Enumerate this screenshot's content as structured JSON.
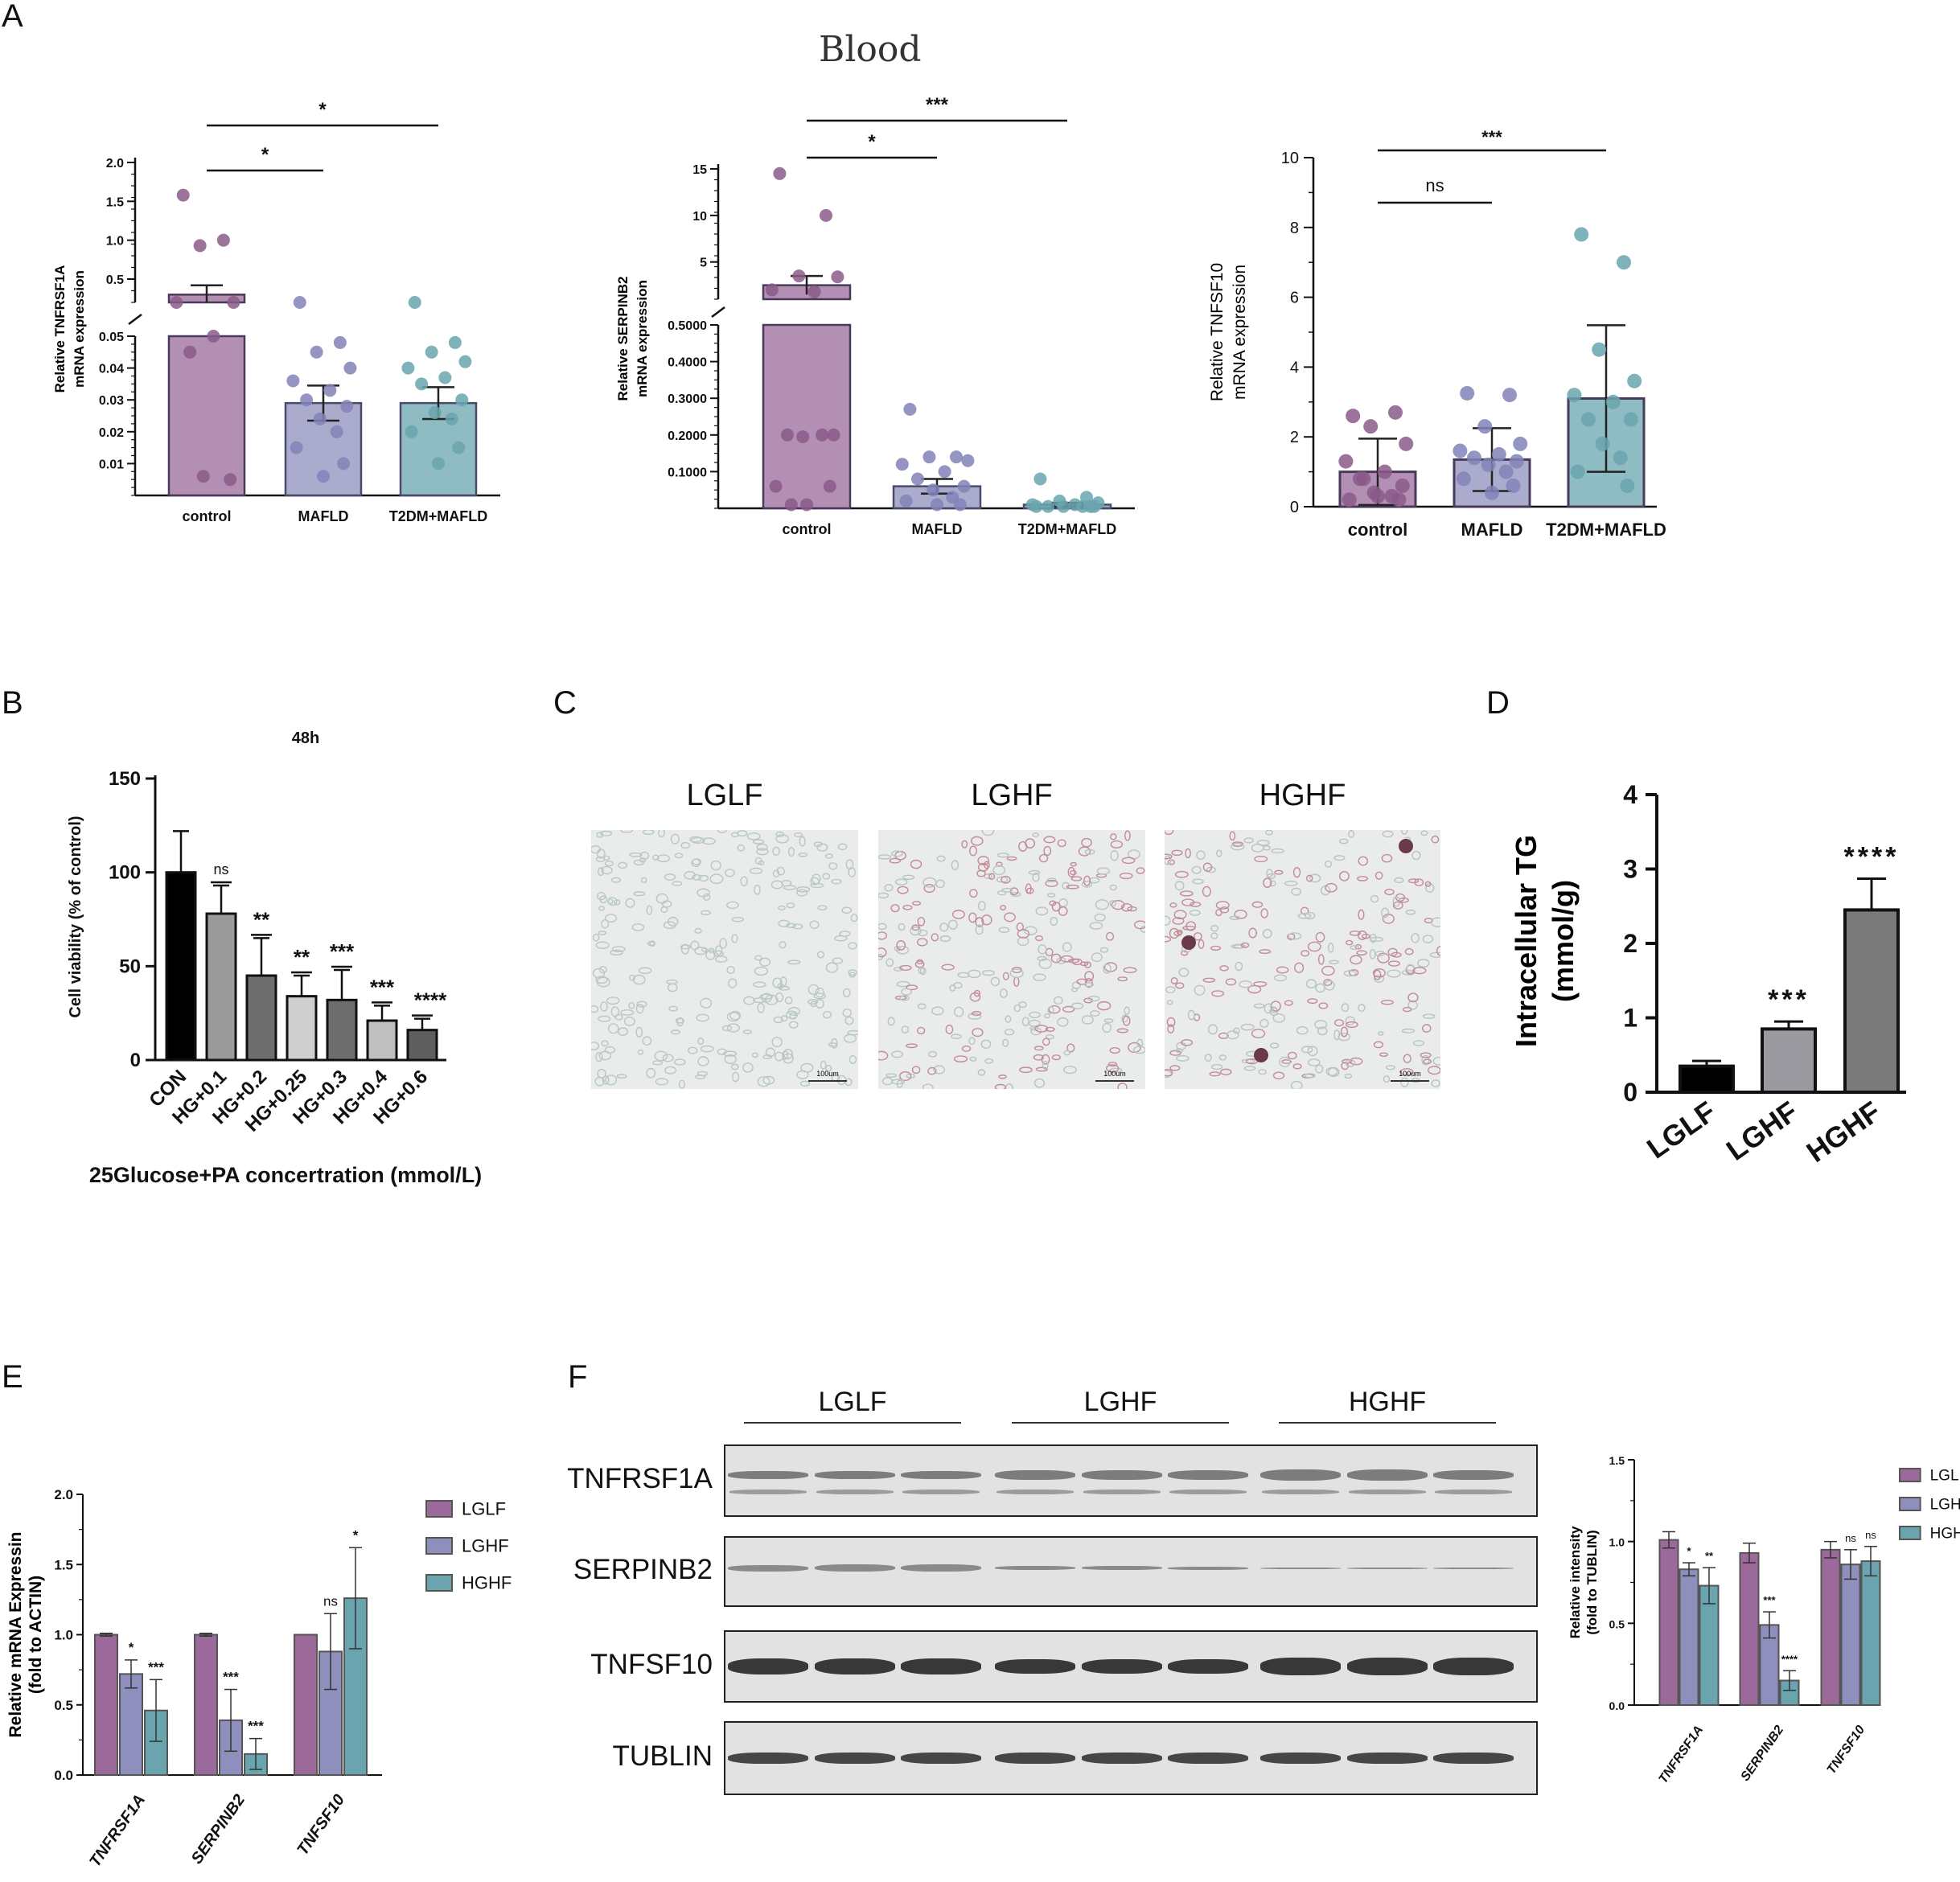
{
  "panels": {
    "A": "A",
    "B": "B",
    "C": "C",
    "D": "D",
    "E": "E",
    "F": "F"
  },
  "header_title": "Blood",
  "colors": {
    "purple": "#9b6a9b",
    "lavender": "#8f8fbd",
    "teal": "#6aa4ae",
    "purple_pt": "#8a5a8a",
    "lavender_pt": "#8282b8",
    "teal_pt": "#6aa4ae"
  },
  "chart_data": [
    {
      "id": "A1",
      "type": "bar",
      "ylabel": [
        "Relative TNFRSF1A",
        "mRNA expression"
      ],
      "categories": [
        "control",
        "MAFLD",
        "T2DM+MAFLD"
      ],
      "upper_ticks": [
        "2.0",
        "1.5",
        "1.0",
        "0.5"
      ],
      "lower_ticks": [
        "0.05",
        "0.04",
        "0.03",
        "0.02",
        "0.01"
      ],
      "values": [
        0.3,
        0.029,
        0.029
      ],
      "errors": [
        0.12,
        0.0055,
        0.005
      ],
      "points": [
        [
          1.58,
          1.0,
          0.93,
          0.2,
          0.2,
          0.05,
          0.045,
          0.005,
          0.006
        ],
        [
          0.2,
          0.048,
          0.045,
          0.04,
          0.036,
          0.033,
          0.03,
          0.028,
          0.024,
          0.02,
          0.015,
          0.01,
          0.006
        ],
        [
          0.2,
          0.048,
          0.045,
          0.042,
          0.04,
          0.037,
          0.035,
          0.03,
          0.026,
          0.024,
          0.02,
          0.015,
          0.01
        ]
      ],
      "brackets": [
        {
          "label": "*",
          "from": 0,
          "to": 1
        },
        {
          "label": "*",
          "from": 0,
          "to": 2
        }
      ]
    },
    {
      "id": "A2",
      "type": "bar",
      "ylabel": [
        "Relative SERPINB2",
        "mRNA expression"
      ],
      "categories": [
        "control",
        "MAFLD",
        "T2DM+MAFLD"
      ],
      "upper_ticks": [
        "15",
        "10",
        "5"
      ],
      "lower_ticks": [
        "0.5000",
        "0.4000",
        "0.3000",
        "0.2000",
        "0.1000"
      ],
      "values": [
        2.5,
        0.06,
        0.01
      ],
      "errors": [
        1.0,
        0.02,
        0.005
      ],
      "points": [
        [
          14.5,
          10,
          3.5,
          3.4,
          2.0,
          1.8,
          0.2,
          0.2,
          0.195,
          0.2,
          0.06,
          0.06,
          0.01,
          0.01
        ],
        [
          0.27,
          0.14,
          0.14,
          0.13,
          0.12,
          0.1,
          0.08,
          0.06,
          0.05,
          0.03,
          0.02,
          0.01,
          0.01
        ],
        [
          0.08,
          0.03,
          0.02,
          0.015,
          0.01,
          0.01,
          0.005,
          0.005,
          0.005,
          0.005,
          0.005,
          0.005
        ]
      ],
      "brackets": [
        {
          "label": "*",
          "from": 0,
          "to": 1
        },
        {
          "label": "***",
          "from": 0,
          "to": 2
        }
      ]
    },
    {
      "id": "A3",
      "type": "bar",
      "ylabel": [
        "Relative TNFSF10",
        "mRNA expression"
      ],
      "categories": [
        "control",
        "MAFLD",
        "T2DM+MAFLD"
      ],
      "yticks": [
        "0",
        "2",
        "4",
        "6",
        "8",
        "10"
      ],
      "ylim": [
        0,
        10
      ],
      "values": [
        1.0,
        1.35,
        3.1
      ],
      "errors": [
        0.95,
        0.9,
        2.1
      ],
      "points": [
        [
          2.6,
          2.7,
          2.3,
          1.8,
          1.3,
          1.0,
          0.8,
          0.6,
          0.4,
          0.3,
          0.2,
          0.2,
          0.3,
          0.8
        ],
        [
          3.25,
          3.2,
          2.3,
          1.8,
          1.6,
          1.5,
          1.4,
          1.3,
          1.2,
          1.0,
          0.8,
          0.6,
          0.4
        ],
        [
          7.8,
          7.0,
          4.5,
          3.6,
          3.2,
          3.0,
          2.5,
          2.5,
          1.8,
          1.4,
          1.0,
          0.6
        ]
      ],
      "brackets": [
        {
          "label": "ns",
          "from": 0,
          "to": 1
        },
        {
          "label": "***",
          "from": 0,
          "to": 2
        }
      ]
    },
    {
      "id": "B",
      "type": "bar",
      "title": "48h",
      "ylabel": "Cell viability (% of control)",
      "xlabel": "25Glucose+PA concertration (mmol/L)",
      "categories": [
        "CON",
        "HG+0.1",
        "HG+0.2",
        "HG+0.25",
        "HG+0.3",
        "HG+0.4",
        "HG+0.6"
      ],
      "values": [
        100,
        78,
        45,
        34,
        32,
        21,
        16
      ],
      "errors": [
        22,
        15,
        20,
        11,
        16,
        8,
        6
      ],
      "sig": [
        "",
        "ns",
        "**",
        "**",
        "***",
        "***",
        "****"
      ],
      "fills": [
        "#000000",
        "#9a9a9a",
        "#6e6e6e",
        "#cfcfcf",
        "#6e6e6e",
        "#bfbfbf",
        "#5e5e5e"
      ],
      "yticks": [
        "0",
        "50",
        "100",
        "150"
      ],
      "ylim": [
        0,
        150
      ]
    },
    {
      "id": "D",
      "type": "bar",
      "ylabel": [
        "Intracellular TG",
        "(mmol/g)"
      ],
      "categories": [
        "LGLF",
        "LGHF",
        "HGHF"
      ],
      "values": [
        0.35,
        0.85,
        2.45
      ],
      "errors": [
        0.07,
        0.1,
        0.42
      ],
      "sig": [
        "",
        "***",
        "****"
      ],
      "fills": [
        "#000000",
        "#9a9aa0",
        "#7a7a7a"
      ],
      "yticks": [
        "0",
        "1",
        "2",
        "3",
        "4"
      ],
      "ylim": [
        0,
        4
      ]
    },
    {
      "id": "E",
      "type": "bar",
      "ylabel": [
        "Relative mRNA Expressin",
        "(fold to ACTIN)"
      ],
      "categories": [
        "TNFRSF1A",
        "SERPINB2",
        "TNFSF10"
      ],
      "series": [
        {
          "name": "LGLF",
          "values": [
            1.0,
            1.0,
            1.0
          ],
          "errors": [
            0.01,
            0.01,
            0.0
          ]
        },
        {
          "name": "LGHF",
          "values": [
            0.72,
            0.39,
            0.88
          ],
          "errors": [
            0.1,
            0.22,
            0.27
          ]
        },
        {
          "name": "HGHF",
          "values": [
            0.46,
            0.15,
            1.26
          ],
          "errors": [
            0.22,
            0.11,
            0.36
          ]
        }
      ],
      "sig": [
        [
          "",
          "*",
          "***"
        ],
        [
          "",
          "***",
          "***"
        ],
        [
          "",
          "ns",
          "*"
        ]
      ],
      "yticks": [
        "0.0",
        "0.5",
        "1.0",
        "1.5",
        "2.0"
      ],
      "ylim": [
        0,
        2.0
      ]
    },
    {
      "id": "F",
      "type": "bar",
      "ylabel": [
        "Relative intensity",
        "(fold to TUBLIN)"
      ],
      "categories": [
        "TNFRSF1A",
        "SERPINB2",
        "TNFSF10"
      ],
      "series": [
        {
          "name": "LGLF",
          "values": [
            1.01,
            0.93,
            0.95
          ],
          "errors": [
            0.05,
            0.06,
            0.05
          ]
        },
        {
          "name": "LGHF",
          "values": [
            0.83,
            0.49,
            0.86
          ],
          "errors": [
            0.04,
            0.08,
            0.09
          ]
        },
        {
          "name": "HGHF",
          "values": [
            0.73,
            0.15,
            0.88
          ],
          "errors": [
            0.11,
            0.06,
            0.09
          ]
        }
      ],
      "sig": [
        [
          "",
          "*",
          "**"
        ],
        [
          "",
          "***",
          "****"
        ],
        [
          "",
          "ns",
          "ns"
        ]
      ],
      "yticks": [
        "0.0",
        "0.5",
        "1.0",
        "1.5"
      ],
      "ylim": [
        0,
        1.5
      ]
    }
  ],
  "panel_c": {
    "labels": [
      "LGLF",
      "LGHF",
      "HGHF"
    ],
    "scale_label": "100um"
  },
  "panel_f": {
    "group_labels": [
      "LGLF",
      "LGHF",
      "HGHF"
    ],
    "row_labels": [
      "TNFRSF1A",
      "SERPINB2",
      "TNFSF10",
      "TUBLIN"
    ]
  }
}
